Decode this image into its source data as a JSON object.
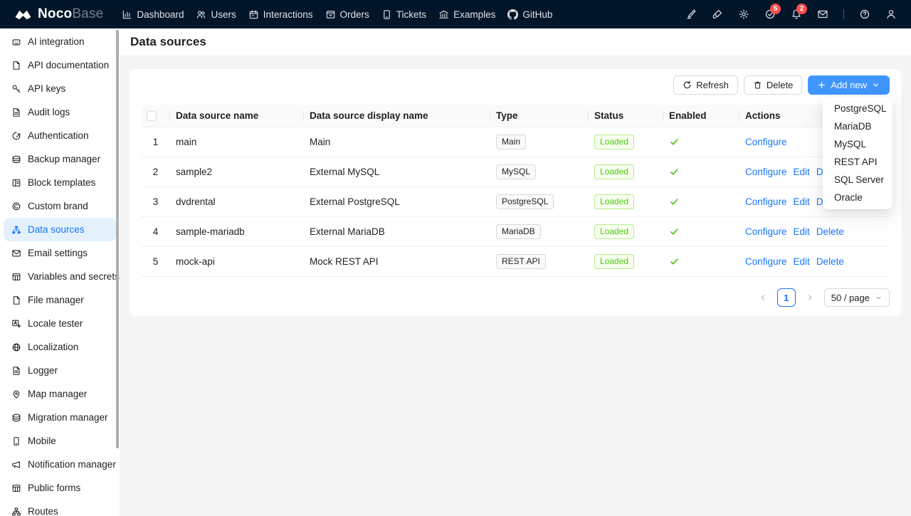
{
  "navbar": {
    "logo_text_bold": "Noco",
    "logo_text_light": "Base",
    "menu": [
      {
        "label": "Dashboard",
        "icon": "bar-chart-icon"
      },
      {
        "label": "Users",
        "icon": "users-icon"
      },
      {
        "label": "Interactions",
        "icon": "calendar-icon"
      },
      {
        "label": "Orders",
        "icon": "box-icon"
      },
      {
        "label": "Tickets",
        "icon": "tablet-icon"
      },
      {
        "label": "Examples",
        "icon": "bank-icon"
      },
      {
        "label": "GitHub",
        "icon": "github-icon"
      }
    ],
    "right_icons": [
      {
        "icon": "highlighter-pen-icon"
      },
      {
        "icon": "theme-brush-icon"
      },
      {
        "icon": "settings-gear-icon"
      },
      {
        "icon": "tasks-check-circle-icon",
        "badge": "5"
      },
      {
        "icon": "notifications-bell-icon",
        "badge": "2"
      },
      {
        "icon": "mail-icon"
      },
      {
        "icon": "divider"
      },
      {
        "icon": "help-circle-icon"
      },
      {
        "icon": "user-icon"
      }
    ]
  },
  "sidebar": {
    "selected": "Data sources",
    "items": [
      {
        "label": "AI integration",
        "icon": "robot-icon"
      },
      {
        "label": "API documentation",
        "icon": "api-doc-file-icon"
      },
      {
        "label": "API keys",
        "icon": "key-icon"
      },
      {
        "label": "Audit logs",
        "icon": "audit-file-icon"
      },
      {
        "label": "Authentication",
        "icon": "login-icon"
      },
      {
        "label": "Backup manager",
        "icon": "cloud-server-icon"
      },
      {
        "label": "Block templates",
        "icon": "block-template-icon"
      },
      {
        "label": "Custom brand",
        "icon": "copyright-icon"
      },
      {
        "label": "Data sources",
        "icon": "data-sources-icon"
      },
      {
        "label": "Email settings",
        "icon": "mail-outline-icon"
      },
      {
        "label": "Variables and secrets",
        "icon": "table-grid-icon"
      },
      {
        "label": "File manager",
        "icon": "file-icon"
      },
      {
        "label": "Locale tester",
        "icon": "translate-icon"
      },
      {
        "label": "Localization",
        "icon": "globe-icon"
      },
      {
        "label": "Logger",
        "icon": "log-file-icon"
      },
      {
        "label": "Map manager",
        "icon": "map-pin-icon"
      },
      {
        "label": "Migration manager",
        "icon": "cloud-server-icon"
      },
      {
        "label": "Mobile",
        "icon": "mobile-icon"
      },
      {
        "label": "Notification manager",
        "icon": "megaphone-icon"
      },
      {
        "label": "Public forms",
        "icon": "table-grid-icon"
      },
      {
        "label": "Routes",
        "icon": "routes-icon"
      }
    ]
  },
  "page": {
    "title": "Data sources"
  },
  "toolbar": {
    "refresh_label": "Refresh",
    "delete_label": "Delete",
    "add_new_label": "Add new"
  },
  "add_new_dropdown": {
    "items": [
      "PostgreSQL",
      "MariaDB",
      "MySQL",
      "REST API",
      "SQL Server",
      "Oracle"
    ]
  },
  "table": {
    "columns": [
      "Data source name",
      "Data source display name",
      "Type",
      "Status",
      "Enabled",
      "Actions"
    ],
    "rows": [
      {
        "index": "1",
        "name": "main",
        "display_name": "Main",
        "type": "Main",
        "status": "Loaded",
        "enabled": true,
        "actions": [
          "Configure"
        ]
      },
      {
        "index": "2",
        "name": "sample2",
        "display_name": "External MySQL",
        "type": "MySQL",
        "status": "Loaded",
        "enabled": true,
        "actions": [
          "Configure",
          "Edit",
          "Delete"
        ]
      },
      {
        "index": "3",
        "name": "dvdrental",
        "display_name": "External PostgreSQL",
        "type": "PostgreSQL",
        "status": "Loaded",
        "enabled": true,
        "actions": [
          "Configure",
          "Edit",
          "Delete"
        ]
      },
      {
        "index": "4",
        "name": "sample-mariadb",
        "display_name": "External MariaDB",
        "type": "MariaDB",
        "status": "Loaded",
        "enabled": true,
        "actions": [
          "Configure",
          "Edit",
          "Delete"
        ]
      },
      {
        "index": "5",
        "name": "mock-api",
        "display_name": "Mock REST API",
        "type": "REST API",
        "status": "Loaded",
        "enabled": true,
        "actions": [
          "Configure",
          "Edit",
          "Delete"
        ]
      }
    ]
  },
  "pagination": {
    "current_page": "1",
    "page_size": "50 / page"
  },
  "colors": {
    "navbar_bg": "#021529",
    "primary": "#1677ff",
    "add_new_button": "#4096ff",
    "success": "#52c41a",
    "badge": "#ff4d4f",
    "selected_item_bg": "#e4f1fd"
  }
}
